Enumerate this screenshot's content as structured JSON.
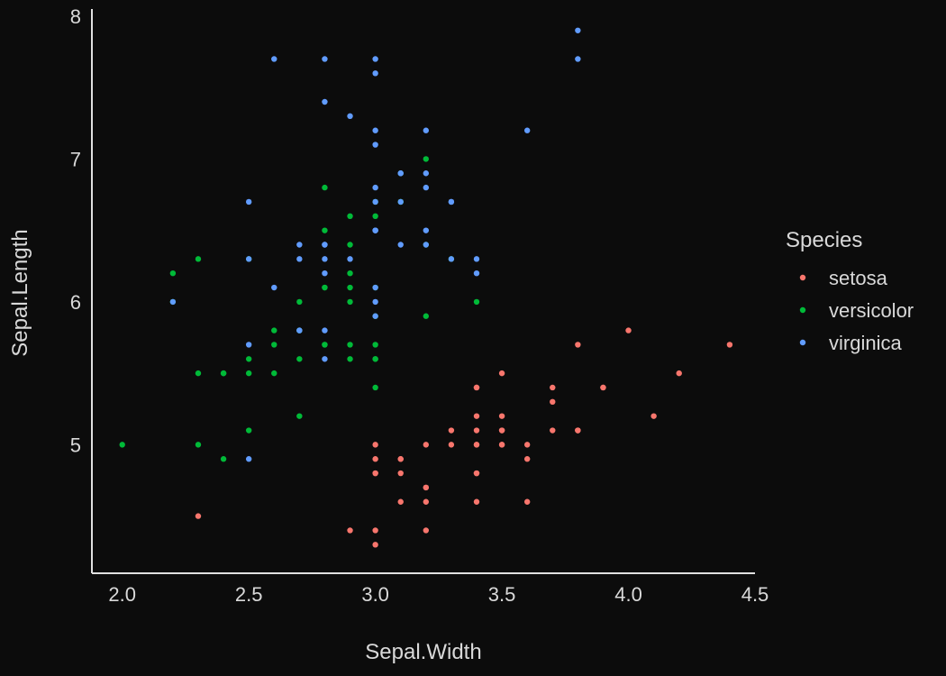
{
  "chart_data": {
    "type": "scatter",
    "title": "",
    "xlabel": "Sepal.Width",
    "ylabel": "Sepal.Length",
    "xlim": [
      1.88,
      4.5
    ],
    "ylim": [
      4.1,
      8.05
    ],
    "xticks": [
      2.0,
      2.5,
      3.0,
      3.5,
      4.0,
      4.5
    ],
    "xtick_labels": [
      "2.0",
      "2.5",
      "3.0",
      "3.5",
      "4.0",
      "4.5"
    ],
    "yticks": [
      5,
      6,
      7,
      8
    ],
    "ytick_labels": [
      "5",
      "6",
      "7",
      "8"
    ],
    "grid": false,
    "legend": {
      "title": "Species",
      "position": "right"
    },
    "series": [
      {
        "name": "setosa",
        "color": "#f8766d",
        "points": [
          [
            3.5,
            5.1
          ],
          [
            3.0,
            4.9
          ],
          [
            3.2,
            4.7
          ],
          [
            3.1,
            4.6
          ],
          [
            3.6,
            5.0
          ],
          [
            3.9,
            5.4
          ],
          [
            3.4,
            4.6
          ],
          [
            3.4,
            5.0
          ],
          [
            2.9,
            4.4
          ],
          [
            3.1,
            4.9
          ],
          [
            3.7,
            5.4
          ],
          [
            3.4,
            4.8
          ],
          [
            3.0,
            4.8
          ],
          [
            3.0,
            4.3
          ],
          [
            4.0,
            5.8
          ],
          [
            4.4,
            5.7
          ],
          [
            3.9,
            5.4
          ],
          [
            3.5,
            5.1
          ],
          [
            3.8,
            5.7
          ],
          [
            3.8,
            5.1
          ],
          [
            3.4,
            5.4
          ],
          [
            3.7,
            5.1
          ],
          [
            3.6,
            4.6
          ],
          [
            3.3,
            5.1
          ],
          [
            3.4,
            4.8
          ],
          [
            3.0,
            5.0
          ],
          [
            3.4,
            5.0
          ],
          [
            3.5,
            5.2
          ],
          [
            3.4,
            5.2
          ],
          [
            3.2,
            4.7
          ],
          [
            3.1,
            4.8
          ],
          [
            3.4,
            5.4
          ],
          [
            4.1,
            5.2
          ],
          [
            4.2,
            5.5
          ],
          [
            3.1,
            4.9
          ],
          [
            3.2,
            5.0
          ],
          [
            3.5,
            5.5
          ],
          [
            3.6,
            4.9
          ],
          [
            3.0,
            4.4
          ],
          [
            3.4,
            5.1
          ],
          [
            3.5,
            5.0
          ],
          [
            2.3,
            4.5
          ],
          [
            3.2,
            4.4
          ],
          [
            3.5,
            5.0
          ],
          [
            3.8,
            5.1
          ],
          [
            3.0,
            4.8
          ],
          [
            3.8,
            5.1
          ],
          [
            3.2,
            4.6
          ],
          [
            3.7,
            5.3
          ],
          [
            3.3,
            5.0
          ]
        ]
      },
      {
        "name": "versicolor",
        "color": "#00ba38",
        "points": [
          [
            3.2,
            7.0
          ],
          [
            3.2,
            6.4
          ],
          [
            3.1,
            6.9
          ],
          [
            2.3,
            5.5
          ],
          [
            2.8,
            6.5
          ],
          [
            2.8,
            5.7
          ],
          [
            3.3,
            6.3
          ],
          [
            2.4,
            4.9
          ],
          [
            2.9,
            6.6
          ],
          [
            2.7,
            5.2
          ],
          [
            2.0,
            5.0
          ],
          [
            3.0,
            5.9
          ],
          [
            2.2,
            6.0
          ],
          [
            2.9,
            6.1
          ],
          [
            2.9,
            5.6
          ],
          [
            3.1,
            6.7
          ],
          [
            3.0,
            5.6
          ],
          [
            2.7,
            5.8
          ],
          [
            2.2,
            6.2
          ],
          [
            2.5,
            5.6
          ],
          [
            3.2,
            5.9
          ],
          [
            2.8,
            6.1
          ],
          [
            2.5,
            6.3
          ],
          [
            2.8,
            6.1
          ],
          [
            2.9,
            6.4
          ],
          [
            3.0,
            6.6
          ],
          [
            2.8,
            6.8
          ],
          [
            3.0,
            6.7
          ],
          [
            2.9,
            6.0
          ],
          [
            2.6,
            5.7
          ],
          [
            2.4,
            5.5
          ],
          [
            2.4,
            5.5
          ],
          [
            2.7,
            5.8
          ],
          [
            2.7,
            6.0
          ],
          [
            3.0,
            5.4
          ],
          [
            3.4,
            6.0
          ],
          [
            3.1,
            6.7
          ],
          [
            2.3,
            6.3
          ],
          [
            3.0,
            5.6
          ],
          [
            2.5,
            5.5
          ],
          [
            2.6,
            5.5
          ],
          [
            3.0,
            6.1
          ],
          [
            2.6,
            5.8
          ],
          [
            2.3,
            5.0
          ],
          [
            2.7,
            5.6
          ],
          [
            3.0,
            5.7
          ],
          [
            2.9,
            5.7
          ],
          [
            2.9,
            6.2
          ],
          [
            2.5,
            5.1
          ],
          [
            2.8,
            5.7
          ]
        ]
      },
      {
        "name": "virginica",
        "color": "#619cff",
        "points": [
          [
            3.3,
            6.3
          ],
          [
            2.7,
            5.8
          ],
          [
            3.0,
            7.1
          ],
          [
            2.9,
            6.3
          ],
          [
            3.0,
            6.5
          ],
          [
            3.0,
            7.6
          ],
          [
            2.5,
            4.9
          ],
          [
            2.9,
            7.3
          ],
          [
            2.5,
            6.7
          ],
          [
            3.6,
            7.2
          ],
          [
            3.2,
            6.5
          ],
          [
            2.7,
            6.4
          ],
          [
            3.0,
            6.8
          ],
          [
            2.5,
            5.7
          ],
          [
            2.8,
            5.8
          ],
          [
            3.2,
            6.4
          ],
          [
            3.0,
            6.5
          ],
          [
            3.8,
            7.7
          ],
          [
            2.6,
            7.7
          ],
          [
            2.2,
            6.0
          ],
          [
            3.2,
            6.9
          ],
          [
            2.8,
            5.6
          ],
          [
            2.8,
            7.7
          ],
          [
            2.7,
            6.3
          ],
          [
            3.3,
            6.7
          ],
          [
            3.2,
            7.2
          ],
          [
            2.8,
            6.2
          ],
          [
            3.0,
            6.1
          ],
          [
            2.8,
            6.4
          ],
          [
            3.0,
            7.2
          ],
          [
            2.8,
            7.4
          ],
          [
            3.8,
            7.9
          ],
          [
            2.8,
            6.4
          ],
          [
            2.8,
            6.3
          ],
          [
            2.6,
            6.1
          ],
          [
            3.0,
            7.7
          ],
          [
            3.4,
            6.3
          ],
          [
            3.1,
            6.4
          ],
          [
            3.0,
            6.0
          ],
          [
            3.1,
            6.9
          ],
          [
            3.1,
            6.7
          ],
          [
            3.1,
            6.9
          ],
          [
            2.7,
            5.8
          ],
          [
            3.2,
            6.8
          ],
          [
            3.3,
            6.7
          ],
          [
            3.0,
            6.7
          ],
          [
            2.5,
            6.3
          ],
          [
            3.0,
            6.5
          ],
          [
            3.4,
            6.2
          ],
          [
            3.0,
            5.9
          ]
        ]
      }
    ]
  }
}
